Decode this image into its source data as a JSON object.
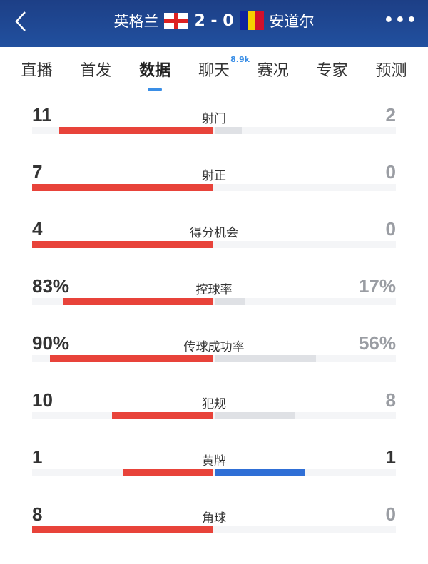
{
  "header": {
    "home_team": "英格兰",
    "away_team": "安道尔",
    "score": "2 - 0",
    "back_icon": "chevron-left-icon",
    "more_icon": "more-icon",
    "bg_color": "#1e4792"
  },
  "tabs": [
    {
      "label": "直播"
    },
    {
      "label": "首发"
    },
    {
      "label": "数据",
      "active": true
    },
    {
      "label": "聊天",
      "badge": "8.9k"
    },
    {
      "label": "赛况"
    },
    {
      "label": "专家"
    },
    {
      "label": "预测"
    }
  ],
  "colors": {
    "home_bar": "#e8433a",
    "away_bar": "#dfe1e5",
    "tie_bar": "#2f6fd6",
    "dim_text": "#9a9da3",
    "dark_text": "#333333"
  },
  "stats": [
    {
      "label": "射门",
      "home": "11",
      "away": "2",
      "home_frac": 0.85,
      "away_frac": 0.15
    },
    {
      "label": "射正",
      "home": "7",
      "away": "0",
      "home_frac": 1,
      "away_frac": 0
    },
    {
      "label": "得分机会",
      "home": "4",
      "away": "0",
      "home_frac": 1,
      "away_frac": 0
    },
    {
      "label": "控球率",
      "home": "83%",
      "away": "17%",
      "home_frac": 0.83,
      "away_frac": 0.17
    },
    {
      "label": "传球成功率",
      "home": "90%",
      "away": "56%",
      "home_frac": 0.9,
      "away_frac": 0.56
    },
    {
      "label": "犯规",
      "home": "10",
      "away": "8",
      "home_frac": 0.56,
      "away_frac": 0.44
    },
    {
      "label": "黄牌",
      "home": "1",
      "away": "1",
      "home_frac": 0.5,
      "away_frac": 0.5,
      "tie": true
    },
    {
      "label": "角球",
      "home": "8",
      "away": "0",
      "home_frac": 1,
      "away_frac": 0
    }
  ]
}
